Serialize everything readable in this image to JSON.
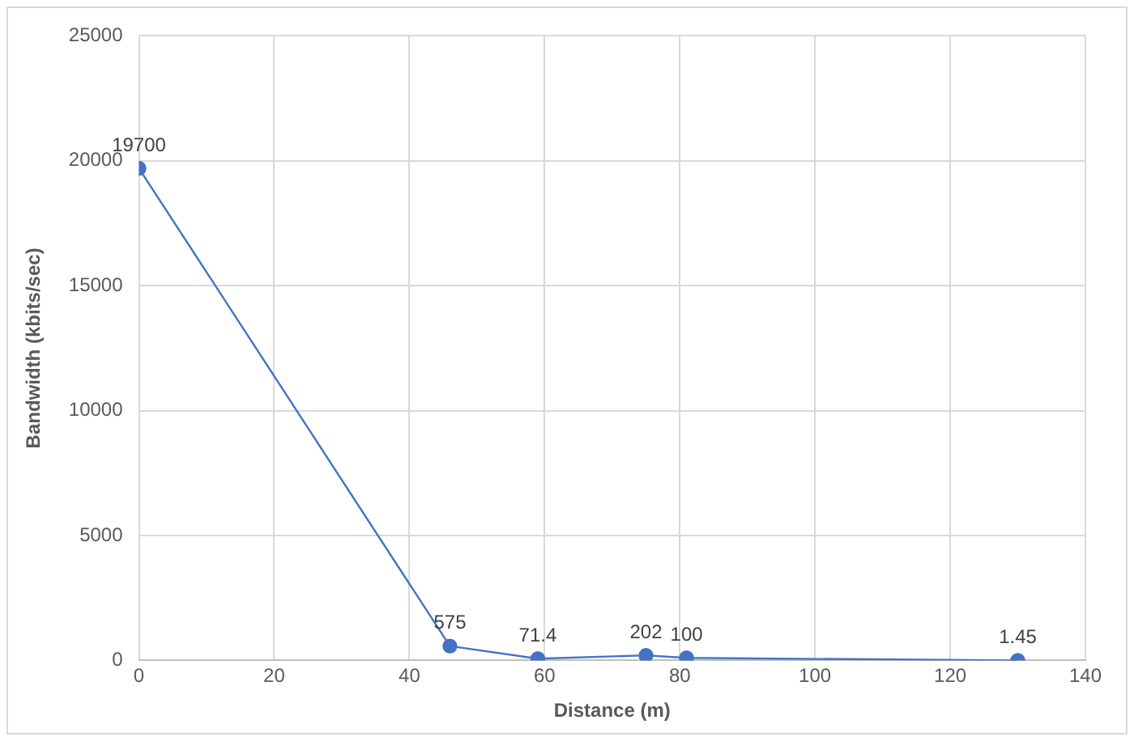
{
  "chart_data": {
    "type": "line",
    "xlabel": "Distance (m)",
    "ylabel": "Bandwidth (kbits/sec)",
    "x": [
      0,
      46,
      59,
      75,
      81,
      130
    ],
    "series": [
      {
        "color": "#4472c4",
        "values": [
          19700,
          575,
          71.4,
          202,
          100,
          1.45
        ]
      }
    ],
    "xlim": [
      0,
      140
    ],
    "xticks": [
      0,
      20,
      40,
      60,
      80,
      100,
      120,
      140
    ],
    "ylim": [
      0,
      25000
    ],
    "yticks": [
      0,
      5000,
      10000,
      15000,
      20000,
      25000
    ],
    "grid": true,
    "legend": false,
    "marker": "circle",
    "line_style": "solid",
    "data_labels": true
  }
}
